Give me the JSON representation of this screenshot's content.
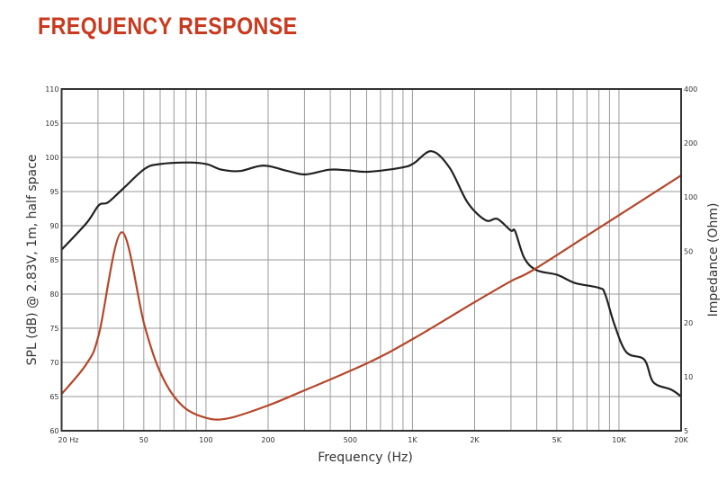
{
  "chart_data": {
    "type": "line",
    "title": "FREQUENCY RESPONSE",
    "xlabel": "Frequency (Hz)",
    "ylabel": "SPL (dB) @ 2.83V, 1m, half space",
    "y2label": "Impedance (Ohm)",
    "xscale": "log",
    "xlim": [
      20,
      20000
    ],
    "ylim": [
      60,
      110
    ],
    "y2lim": [
      5,
      400
    ],
    "y2scale": "log",
    "grid": true,
    "xticks": [
      {
        "value": 20,
        "label": "20  Hz"
      },
      {
        "value": 50,
        "label": "50"
      },
      {
        "value": 100,
        "label": "100"
      },
      {
        "value": 200,
        "label": "200"
      },
      {
        "value": 500,
        "label": "500"
      },
      {
        "value": 1000,
        "label": "1K"
      },
      {
        "value": 2000,
        "label": "2K"
      },
      {
        "value": 5000,
        "label": "5K"
      },
      {
        "value": 10000,
        "label": "10K"
      },
      {
        "value": 20000,
        "label": "20K"
      }
    ],
    "yticks": [
      "60",
      "65",
      "70",
      "75",
      "80",
      "85",
      "90",
      "95",
      "100",
      "105",
      "110"
    ],
    "y2ticks": [
      "5",
      "10",
      "20",
      "50",
      "100",
      "200",
      "400"
    ],
    "series": [
      {
        "name": "SPL",
        "axis": "left",
        "color": "#222222",
        "x": [
          20,
          26.4,
          30.3,
          33.5,
          39.6,
          50.4,
          59.2,
          82.9,
          101,
          119,
          146,
          190,
          249,
          304,
          397,
          485,
          614,
          885,
          1012,
          1237,
          1512,
          1849,
          2260,
          2573,
          2990,
          3140,
          3475,
          3985,
          5030,
          6140,
          8030,
          8570,
          9470,
          10860,
          13280,
          14670,
          17950,
          20000
        ],
        "y": [
          86.5,
          90.4,
          93,
          93.4,
          95.4,
          98.3,
          99,
          99.25,
          99,
          98.2,
          98,
          98.8,
          98,
          97.5,
          98.2,
          98.1,
          97.9,
          98.5,
          99.1,
          100.9,
          98.5,
          93.4,
          90.8,
          91,
          89.3,
          89.2,
          85.3,
          83.5,
          82.8,
          81.6,
          80.9,
          80,
          75.7,
          71.5,
          70.4,
          67.1,
          66,
          65
        ]
      },
      {
        "name": "Impedance",
        "axis": "right",
        "color": "#b5472a",
        "x": [
          20,
          26.4,
          30.3,
          39,
          50.4,
          61.2,
          77.1,
          101,
          130,
          196,
          275,
          614,
          1012,
          1976,
          2990,
          3860,
          8030,
          20000
        ],
        "y": [
          8.0,
          11.8,
          17.2,
          63.7,
          19.3,
          10.1,
          6.86,
          5.88,
          5.88,
          6.86,
          8.04,
          12.0,
          16.3,
          25.8,
          34.0,
          39.4,
          67.5,
          132
        ]
      }
    ]
  }
}
